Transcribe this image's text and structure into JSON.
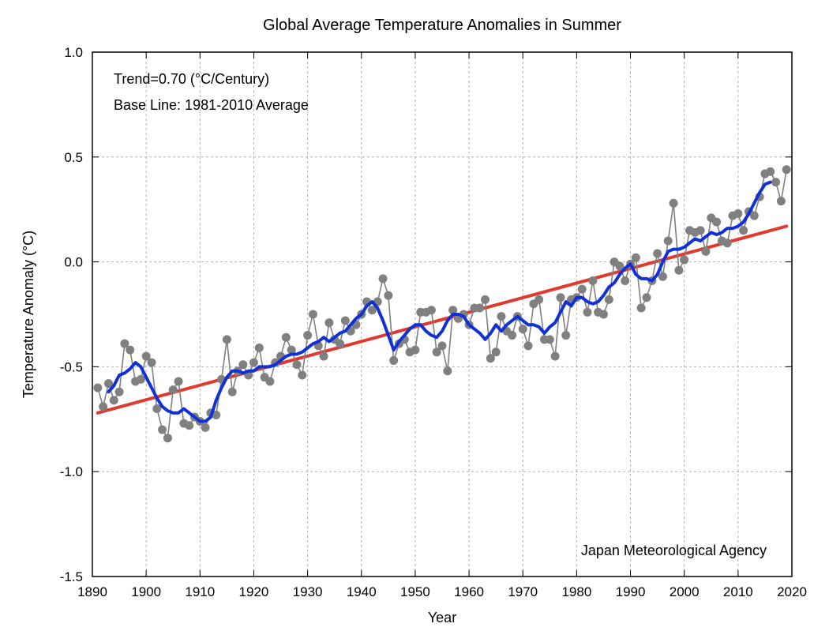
{
  "chart_data": {
    "type": "line",
    "title": "Global Average Temperature Anomalies in Summer",
    "xlabel": "Year",
    "ylabel": "Temperature Anomaly (°C)",
    "xlim": [
      1890,
      2020
    ],
    "ylim": [
      -1.5,
      1.0
    ],
    "x_ticks": [
      1890,
      1900,
      1910,
      1920,
      1930,
      1940,
      1950,
      1960,
      1970,
      1980,
      1990,
      2000,
      2010,
      2020
    ],
    "y_ticks": [
      1.0,
      0.5,
      0.0,
      -0.5,
      -1.0,
      -1.5
    ],
    "y_tick_labels": [
      "1.0",
      "0.5",
      "0.0",
      "-0.5",
      "-1.0",
      "-1.5"
    ],
    "grid": true,
    "annotations": [
      "Trend=0.70 (°C/Century)",
      "Base Line: 1981-2010 Average",
      "Japan Meteorological Agency"
    ],
    "colors": {
      "annual": "#808080",
      "smoothed": "#1030d8",
      "trend": "#e03a30"
    },
    "series": [
      {
        "key": "annual",
        "type": "line+markers",
        "x_start": 1891,
        "values": [
          -0.6,
          -0.69,
          -0.58,
          -0.66,
          -0.62,
          -0.39,
          -0.42,
          -0.57,
          -0.56,
          -0.45,
          -0.48,
          -0.7,
          -0.8,
          -0.84,
          -0.61,
          -0.57,
          -0.77,
          -0.78,
          -0.74,
          -0.76,
          -0.79,
          -0.72,
          -0.73,
          -0.56,
          -0.37,
          -0.62,
          -0.52,
          -0.49,
          -0.54,
          -0.48,
          -0.41,
          -0.55,
          -0.57,
          -0.48,
          -0.45,
          -0.36,
          -0.42,
          -0.49,
          -0.54,
          -0.35,
          -0.25,
          -0.4,
          -0.45,
          -0.29,
          -0.37,
          -0.39,
          -0.28,
          -0.33,
          -0.3,
          -0.25,
          -0.19,
          -0.23,
          -0.19,
          -0.08,
          -0.16,
          -0.47,
          -0.39,
          -0.37,
          -0.43,
          -0.42,
          -0.24,
          -0.24,
          -0.23,
          -0.43,
          -0.4,
          -0.52,
          -0.23,
          -0.27,
          -0.25,
          -0.3,
          -0.22,
          -0.22,
          -0.18,
          -0.46,
          -0.43,
          -0.26,
          -0.33,
          -0.35,
          -0.26,
          -0.32,
          -0.4,
          -0.2,
          -0.18,
          -0.37,
          -0.37,
          -0.45,
          -0.17,
          -0.35,
          -0.18,
          -0.17,
          -0.13,
          -0.24,
          -0.09,
          -0.24,
          -0.25,
          -0.18,
          0.0,
          -0.02,
          -0.09,
          -0.01,
          0.02,
          -0.22,
          -0.17,
          -0.09,
          0.04,
          -0.07,
          0.1,
          0.28,
          -0.04,
          0.01,
          0.15,
          0.14,
          0.15,
          0.05,
          0.21,
          0.19,
          0.1,
          0.09,
          0.22,
          0.23,
          0.15,
          0.24,
          0.22,
          0.31,
          0.42,
          0.43,
          0.38,
          0.29,
          0.44
        ]
      },
      {
        "key": "smoothed",
        "type": "line",
        "x_start": 1893,
        "values": [
          -0.62,
          -0.59,
          -0.54,
          -0.53,
          -0.51,
          -0.48,
          -0.5,
          -0.55,
          -0.6,
          -0.65,
          -0.69,
          -0.71,
          -0.72,
          -0.72,
          -0.7,
          -0.72,
          -0.74,
          -0.76,
          -0.76,
          -0.74,
          -0.66,
          -0.6,
          -0.55,
          -0.52,
          -0.52,
          -0.53,
          -0.52,
          -0.52,
          -0.5,
          -0.5,
          -0.5,
          -0.49,
          -0.47,
          -0.45,
          -0.44,
          -0.44,
          -0.43,
          -0.41,
          -0.39,
          -0.38,
          -0.36,
          -0.38,
          -0.36,
          -0.34,
          -0.33,
          -0.3,
          -0.27,
          -0.25,
          -0.21,
          -0.19,
          -0.22,
          -0.28,
          -0.35,
          -0.42,
          -0.38,
          -0.35,
          -0.32,
          -0.3,
          -0.3,
          -0.33,
          -0.35,
          -0.36,
          -0.33,
          -0.28,
          -0.25,
          -0.25,
          -0.26,
          -0.3,
          -0.32,
          -0.34,
          -0.37,
          -0.34,
          -0.3,
          -0.33,
          -0.3,
          -0.28,
          -0.26,
          -0.28,
          -0.3,
          -0.3,
          -0.31,
          -0.34,
          -0.31,
          -0.29,
          -0.24,
          -0.19,
          -0.21,
          -0.17,
          -0.17,
          -0.19,
          -0.2,
          -0.19,
          -0.16,
          -0.12,
          -0.1,
          -0.06,
          -0.03,
          -0.01,
          -0.06,
          -0.08,
          -0.08,
          -0.09,
          -0.06,
          0.0,
          0.05,
          0.06,
          0.06,
          0.07,
          0.09,
          0.11,
          0.1,
          0.12,
          0.14,
          0.13,
          0.14,
          0.16,
          0.16,
          0.17,
          0.19,
          0.23,
          0.28,
          0.33,
          0.37,
          0.38
        ]
      },
      {
        "key": "trend",
        "type": "line",
        "x": [
          1891,
          2019
        ],
        "values": [
          -0.72,
          0.17
        ]
      }
    ]
  }
}
